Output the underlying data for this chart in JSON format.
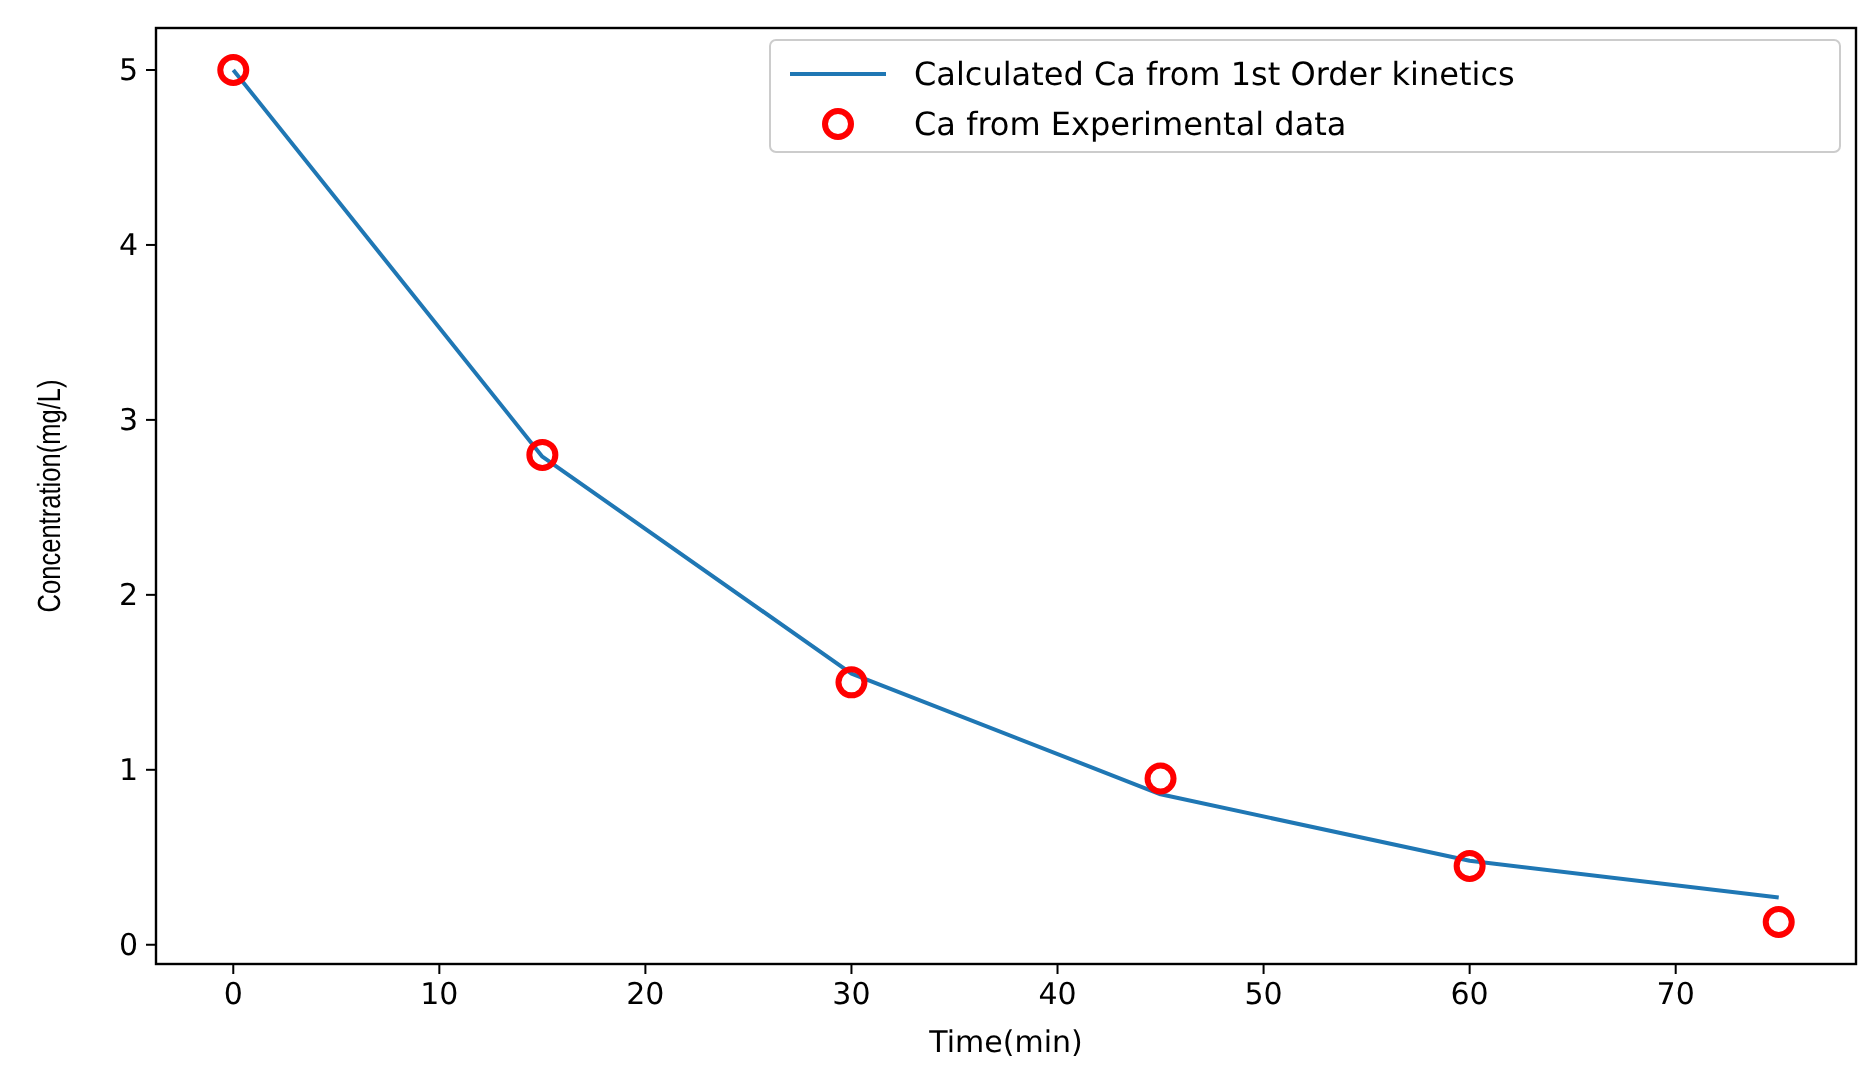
{
  "chart_data": {
    "type": "line",
    "xlabel": "Time(min)",
    "ylabel": "Concentration(mg/L)",
    "x": [
      0,
      15,
      30,
      45,
      60,
      75
    ],
    "series": [
      {
        "name": "Calculated Ca from 1st Order kinetics",
        "color": "#1f77b4",
        "marker": "none",
        "line_style": "solid",
        "values": [
          5,
          2.79,
          1.55,
          0.86,
          0.48,
          0.27
        ]
      },
      {
        "name": "Ca from Experimental data",
        "type": "scatter",
        "color": "#ff0000",
        "marker": "circle",
        "values": [
          5,
          2.8,
          1.5,
          0.95,
          0.45,
          0.13
        ]
      }
    ],
    "xlim": [
      -3.75,
      78.75
    ],
    "xticks": [
      0,
      10,
      20,
      30,
      40,
      50,
      60,
      70
    ],
    "ylim": [
      -0.11,
      5.24
    ],
    "yticks": [
      0,
      1,
      2,
      3,
      4,
      5
    ],
    "grid": false,
    "legend": "top right"
  }
}
